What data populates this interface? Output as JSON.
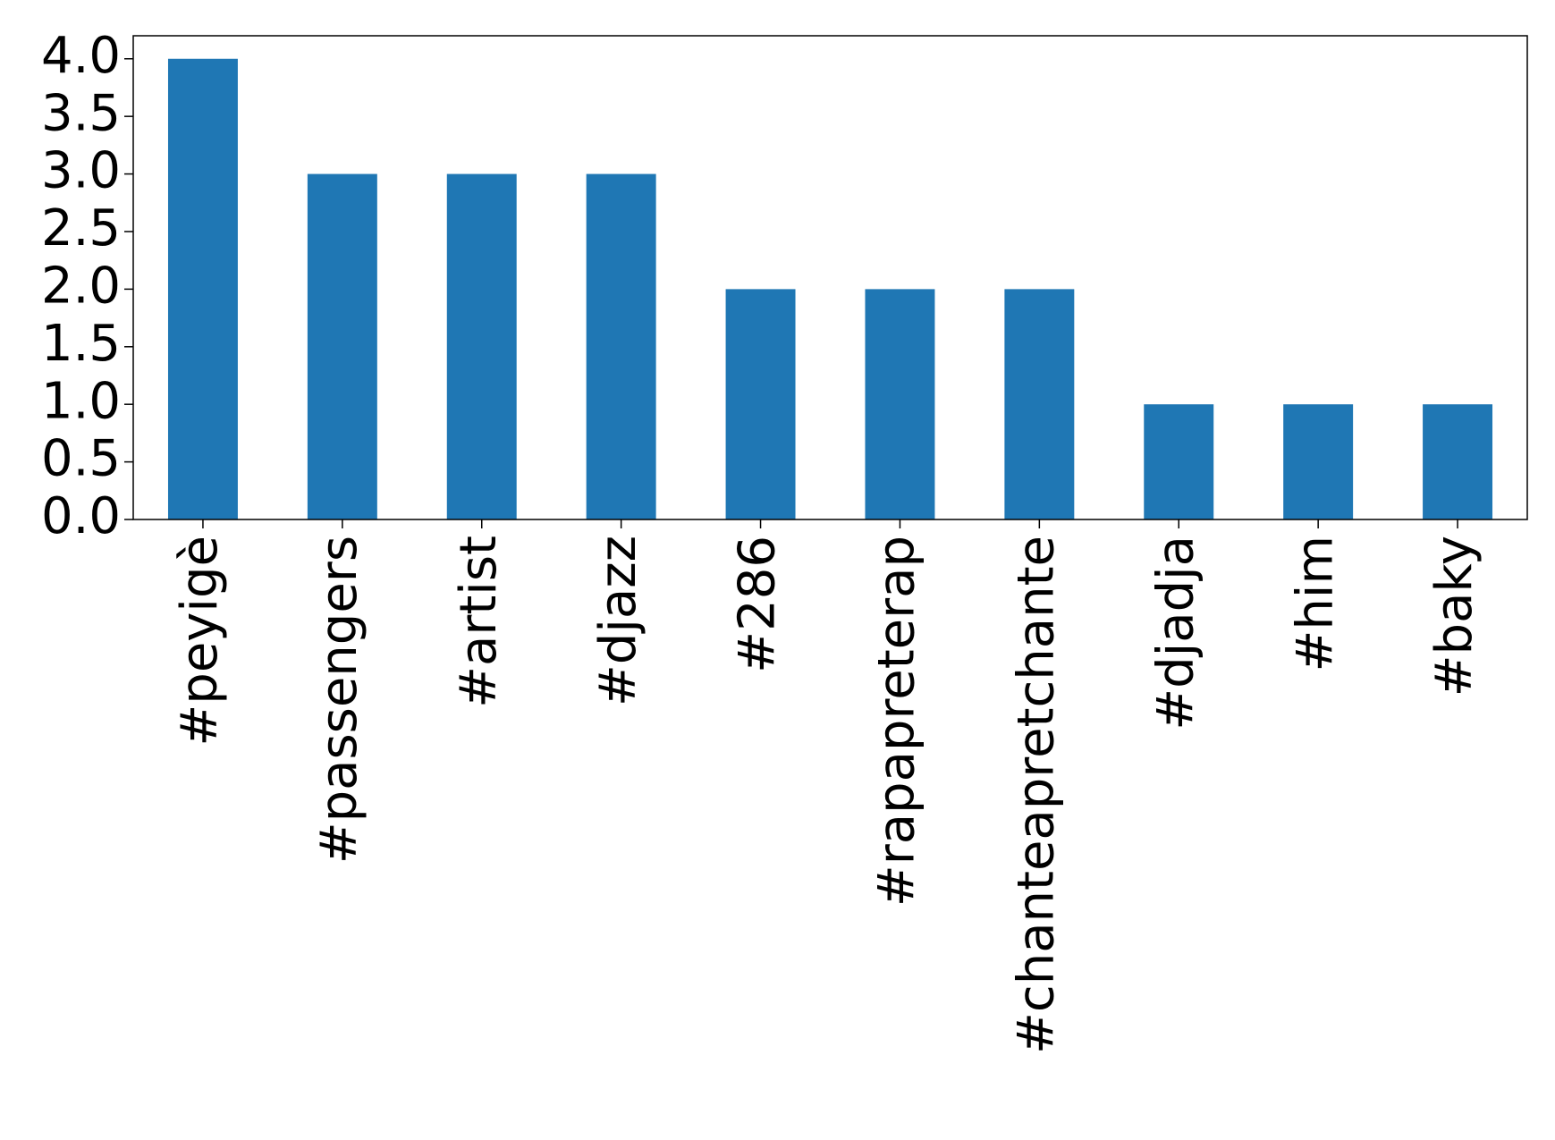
{
  "chart_data": {
    "type": "bar",
    "categories": [
      "#peyigè",
      "#passengers",
      "#artist",
      "#djazz",
      "#286",
      "#rapapreterap",
      "#chanteapretchante",
      "#djadja",
      "#him",
      "#baky"
    ],
    "values": [
      4,
      3,
      3,
      3,
      2,
      2,
      2,
      1,
      1,
      1
    ],
    "color": "#1f77b4",
    "ylim": [
      0,
      4.2
    ],
    "yticks": [
      {
        "value": 0,
        "label": "0.0"
      },
      0.5,
      {
        "value": 1,
        "label": "1.0"
      },
      1.5,
      {
        "value": 2,
        "label": "2.0"
      },
      2.5,
      {
        "value": 3,
        "label": "3.0"
      },
      3.5,
      {
        "value": 4,
        "label": "4.0"
      }
    ],
    "grid": false
  }
}
